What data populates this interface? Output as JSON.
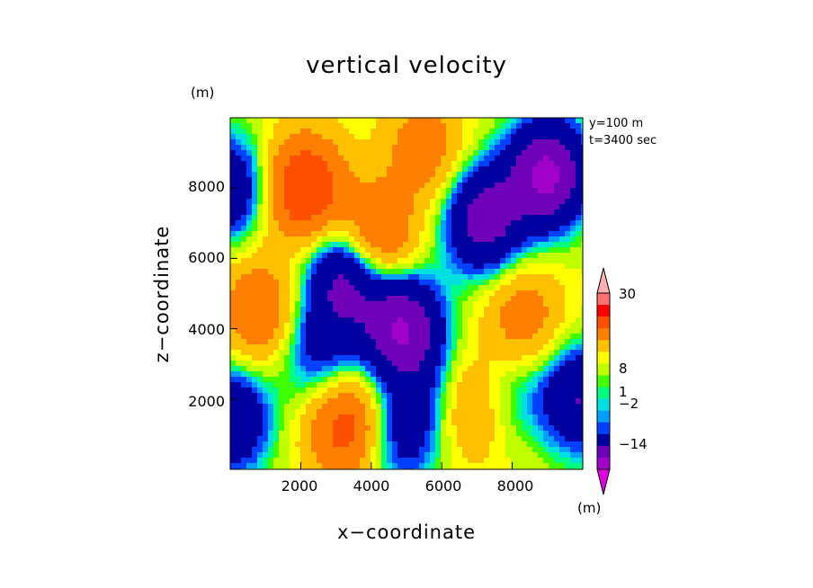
{
  "chart_data": {
    "type": "heatmap",
    "title": "vertical velocity",
    "xlabel": "x−coordinate",
    "ylabel": "z−coordinate",
    "y_unit": "(m)",
    "colorbar_unit": "(m)",
    "annotations": [
      "y=100 m",
      "t=3400 sec"
    ],
    "xlim": [
      0,
      10000
    ],
    "ylim": [
      0,
      10000
    ],
    "x_ticks": [
      "2000",
      "4000",
      "6000",
      "8000"
    ],
    "y_ticks": [
      "2000",
      "4000",
      "6000",
      "8000"
    ],
    "colorbar_labels": [
      "30",
      "8",
      "1",
      "−2",
      "−14"
    ],
    "colorbar_colors": [
      "#e000e0",
      "#a000c8",
      "#7000b8",
      "#0000a0",
      "#0040ff",
      "#00a0ff",
      "#00e0e0",
      "#00ff80",
      "#40ff00",
      "#c0ff00",
      "#ffff00",
      "#ffc000",
      "#ff8000",
      "#ff5000",
      "#ff0000",
      "#ff7070",
      "#ffb0b0"
    ],
    "sources": [
      {
        "x": 2100,
        "z": 8000,
        "w": 10
      },
      {
        "x": 4100,
        "z": 6500,
        "w": 8
      },
      {
        "x": 3300,
        "z": 1200,
        "w": 8
      },
      {
        "x": 4900,
        "z": 4000,
        "w": -12
      },
      {
        "x": 3300,
        "z": 5500,
        "w": -10
      },
      {
        "x": 9000,
        "z": 8400,
        "w": -13
      },
      {
        "x": 7200,
        "z": 7100,
        "w": -10
      },
      {
        "x": 0,
        "z": 8000,
        "w": -7
      },
      {
        "x": 0,
        "z": 1400,
        "w": -8
      },
      {
        "x": 9900,
        "z": 2000,
        "w": -8
      },
      {
        "x": 800,
        "z": 4500,
        "w": 6
      },
      {
        "x": 5500,
        "z": 9100,
        "w": 5
      },
      {
        "x": 8300,
        "z": 4300,
        "w": 5
      },
      {
        "x": 6800,
        "z": 1800,
        "w": 5
      },
      {
        "x": 4800,
        "z": 900,
        "w": -5
      },
      {
        "x": 2500,
        "z": 3400,
        "w": -5
      },
      {
        "x": 5700,
        "z": 2000,
        "w": -3
      },
      {
        "x": 7800,
        "z": 2200,
        "w": -3
      }
    ]
  }
}
